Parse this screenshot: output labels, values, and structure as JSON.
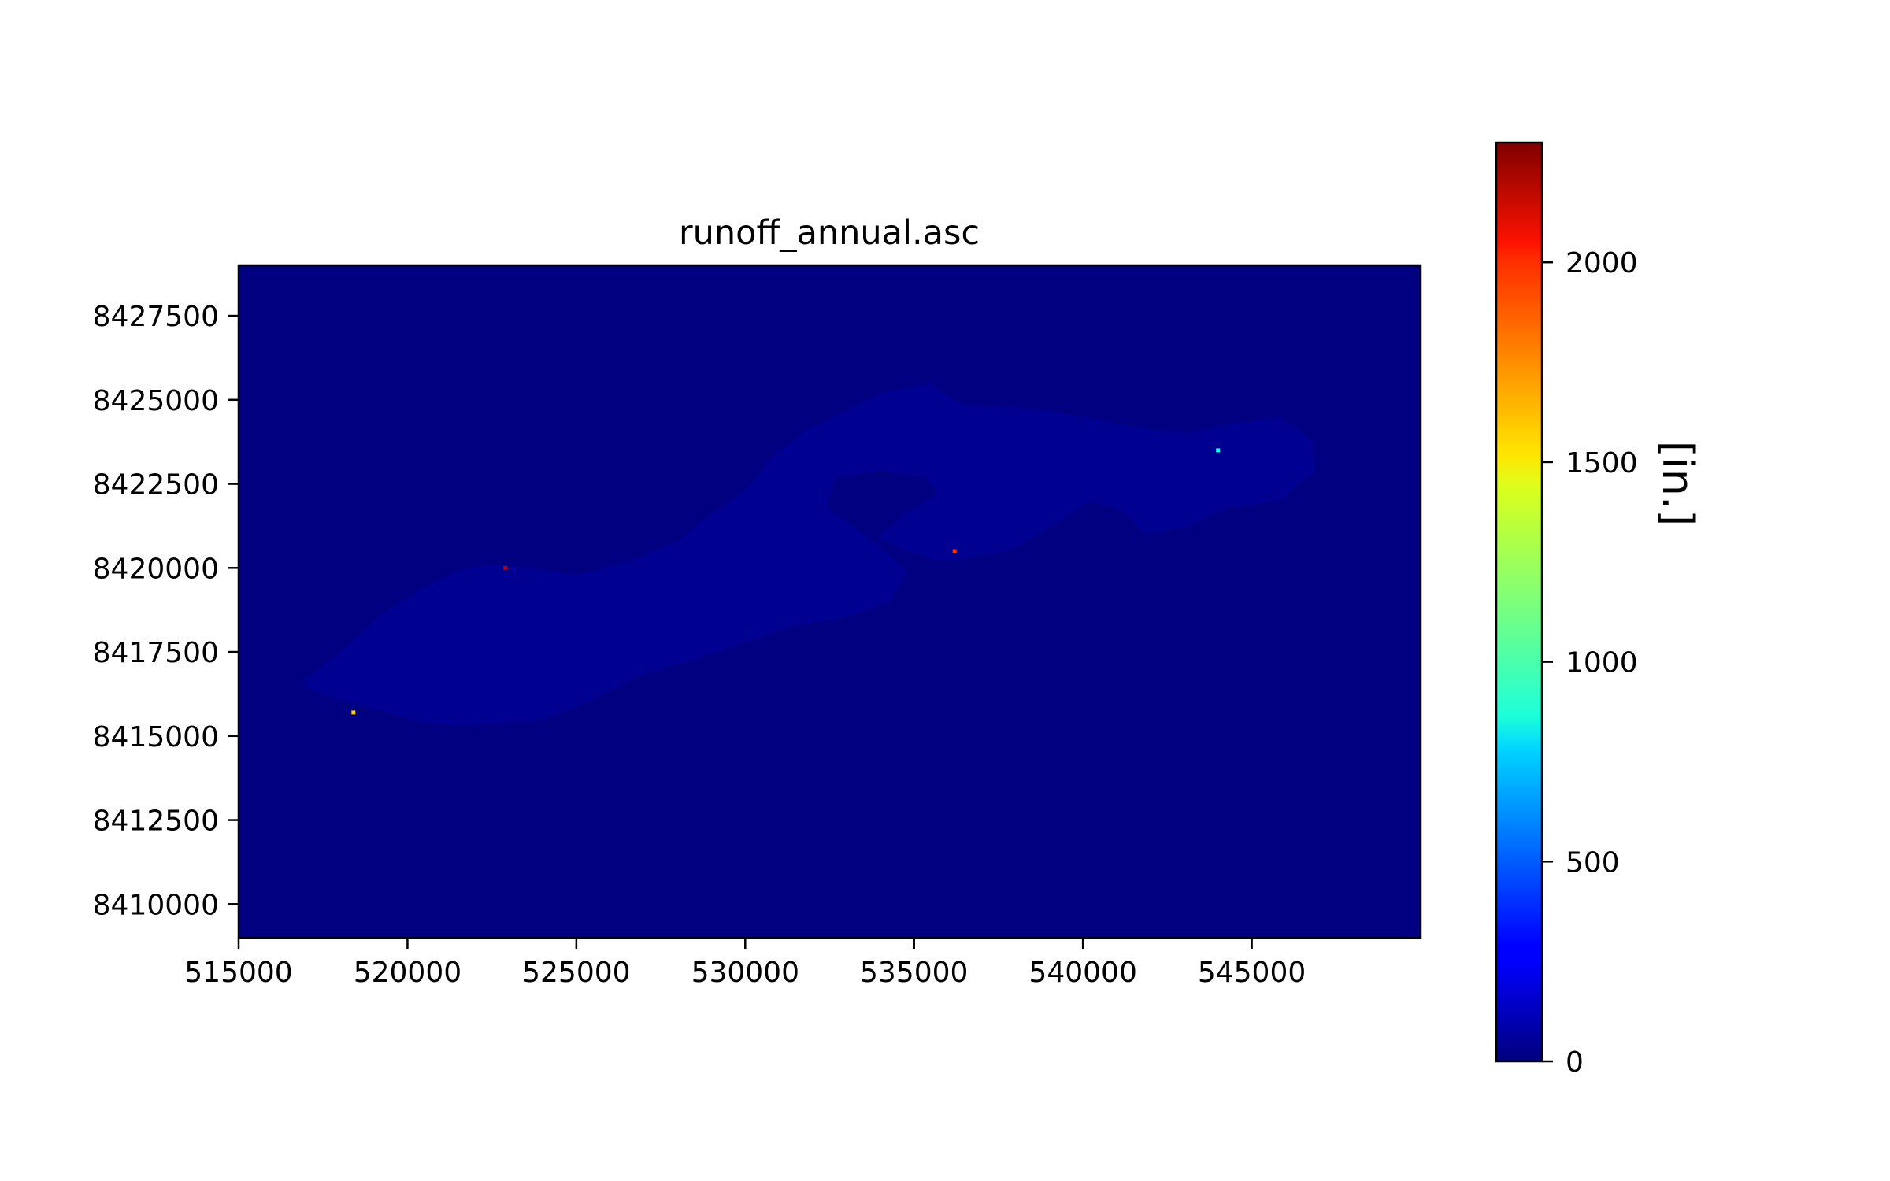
{
  "chart_data": {
    "type": "heatmap",
    "title": "runoff_annual.asc",
    "xlabel": "",
    "ylabel": "",
    "xlim": [
      515000,
      550000
    ],
    "ylim": [
      8409000,
      8429000
    ],
    "x_ticks": [
      515000,
      520000,
      525000,
      530000,
      535000,
      540000,
      545000
    ],
    "y_ticks": [
      8410000,
      8412500,
      8415000,
      8417500,
      8420000,
      8422500,
      8425000,
      8427500
    ],
    "x_tick_labels": [
      "515000",
      "520000",
      "525000",
      "530000",
      "535000",
      "540000",
      "545000"
    ],
    "y_tick_labels": [
      "8410000",
      "8412500",
      "8415000",
      "8417500",
      "8420000",
      "8422500",
      "8425000",
      "8427500"
    ],
    "background_value": 0,
    "catchment_value": 40,
    "catchment_outline": [
      [
        516900,
        8416600
      ],
      [
        518000,
        8417500
      ],
      [
        519200,
        8418600
      ],
      [
        520300,
        8419300
      ],
      [
        521400,
        8419900
      ],
      [
        522400,
        8420100
      ],
      [
        523600,
        8420000
      ],
      [
        525000,
        8419800
      ],
      [
        526600,
        8420200
      ],
      [
        528000,
        8420800
      ],
      [
        529000,
        8421600
      ],
      [
        530000,
        8422300
      ],
      [
        530800,
        8423300
      ],
      [
        531800,
        8424100
      ],
      [
        533000,
        8424700
      ],
      [
        534000,
        8425200
      ],
      [
        535000,
        8425400
      ],
      [
        535500,
        8425500
      ],
      [
        536300,
        8424900
      ],
      [
        537500,
        8424800
      ],
      [
        538800,
        8424700
      ],
      [
        540000,
        8424500
      ],
      [
        541500,
        8424200
      ],
      [
        543000,
        8424000
      ],
      [
        544500,
        8424300
      ],
      [
        545800,
        8424500
      ],
      [
        546800,
        8423800
      ],
      [
        546900,
        8422900
      ],
      [
        545800,
        8422000
      ],
      [
        544300,
        8421800
      ],
      [
        543000,
        8421200
      ],
      [
        541800,
        8421000
      ],
      [
        541200,
        8421700
      ],
      [
        540200,
        8422000
      ],
      [
        539000,
        8421200
      ],
      [
        537800,
        8420500
      ],
      [
        536600,
        8420300
      ],
      [
        535700,
        8420200
      ],
      [
        534800,
        8420500
      ],
      [
        533900,
        8420900
      ],
      [
        534600,
        8421500
      ],
      [
        535700,
        8422200
      ],
      [
        535400,
        8422700
      ],
      [
        534000,
        8422900
      ],
      [
        532700,
        8422700
      ],
      [
        532400,
        8421800
      ],
      [
        533800,
        8420800
      ],
      [
        534800,
        8419900
      ],
      [
        534300,
        8419000
      ],
      [
        532900,
        8418500
      ],
      [
        531500,
        8418300
      ],
      [
        530000,
        8417800
      ],
      [
        528600,
        8417300
      ],
      [
        527100,
        8416900
      ],
      [
        526100,
        8416400
      ],
      [
        525100,
        8415900
      ],
      [
        524000,
        8415500
      ],
      [
        522800,
        8415400
      ],
      [
        521600,
        8415300
      ],
      [
        520500,
        8415400
      ],
      [
        519400,
        8415700
      ],
      [
        518300,
        8416000
      ],
      [
        517300,
        8416300
      ]
    ],
    "hot_pixels": [
      {
        "x": 518400,
        "y": 8415700,
        "value": 1550
      },
      {
        "x": 522900,
        "y": 8420000,
        "value": 2150
      },
      {
        "x": 536200,
        "y": 8420500,
        "value": 1900
      },
      {
        "x": 544000,
        "y": 8423500,
        "value": 900
      }
    ],
    "colorbar": {
      "colormap": "jet",
      "min": 0,
      "max": 2300,
      "ticks": [
        0,
        500,
        1000,
        1500,
        2000
      ],
      "tick_labels": [
        "0",
        "500",
        "1000",
        "1500",
        "2000"
      ],
      "label": "[in.]"
    }
  }
}
